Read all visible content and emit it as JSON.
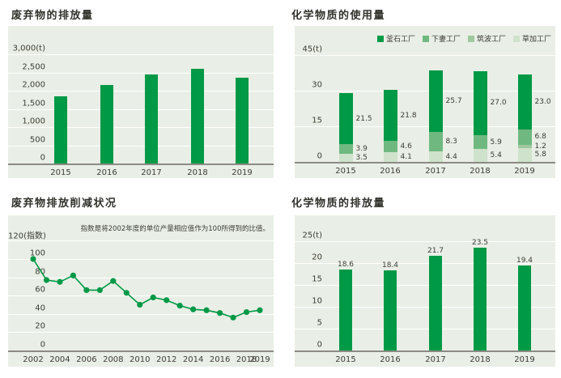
{
  "colors": {
    "page_background": "#ffffff",
    "panel_background": "#e9efe6",
    "gridline": "#ffffff",
    "axis_line": "#8b8b84",
    "text": "#3c3c36",
    "title_text": "#32322c",
    "brand_green": "#009946"
  },
  "chart_data": [
    {
      "id": "waste_emissions",
      "type": "bar",
      "title": "废弃物的排放量",
      "categories": [
        "2015",
        "2016",
        "2017",
        "2018",
        "2019"
      ],
      "values": [
        1850,
        2150,
        2450,
        2600,
        2350
      ],
      "bar_color": "#009946",
      "y_ticks": [
        0,
        500,
        1000,
        1500,
        2000,
        2500,
        3000
      ],
      "y_tick_labels": [
        "0",
        "500",
        "1,000",
        "1,500",
        "2,000",
        "2,500",
        "3,000(t)"
      ],
      "ylim": [
        0,
        3200
      ],
      "unit": "t",
      "grid": true,
      "value_labels": false
    },
    {
      "id": "chemical_usage",
      "type": "stacked-bar",
      "title": "化学物质的使用量",
      "categories": [
        "2015",
        "2016",
        "2017",
        "2018",
        "2019"
      ],
      "series": [
        {
          "name": "釜石工厂",
          "color": "#009946",
          "values": [
            21.5,
            21.8,
            25.7,
            27.0,
            23.0
          ]
        },
        {
          "name": "下妻工厂",
          "color": "#6fb981",
          "values": [
            3.9,
            4.6,
            8.3,
            5.9,
            6.8
          ]
        },
        {
          "name": "筑波工厂",
          "color": "#a0c89e",
          "values": [
            null,
            null,
            null,
            null,
            1.2
          ]
        },
        {
          "name": "草加工厂",
          "color": "#cfe2cb",
          "values": [
            3.5,
            4.1,
            4.4,
            5.4,
            5.8
          ]
        }
      ],
      "stack_order": "bottom-to-top is reverse of legend order",
      "y_ticks": [
        0,
        15,
        30,
        45
      ],
      "y_tick_labels": [
        "0",
        "15",
        "30",
        "45(t)"
      ],
      "ylim": [
        0,
        47
      ],
      "unit": "t",
      "grid": true,
      "legend_position": "top-right",
      "value_labels": true
    },
    {
      "id": "waste_reduction_index",
      "type": "line",
      "title": "废弃物排放削减状况",
      "annotation": "指数是将2002年度的单位产量相应值作为100所得到的比值。",
      "x": [
        2002,
        2003,
        2004,
        2005,
        2006,
        2007,
        2008,
        2009,
        2010,
        2011,
        2012,
        2013,
        2014,
        2015,
        2016,
        2017,
        2018,
        2019
      ],
      "values": [
        100,
        77,
        75,
        82,
        66,
        66,
        76,
        63,
        50,
        58,
        55,
        49,
        45,
        44,
        41,
        36,
        42,
        44
      ],
      "x_tick_labels": [
        "2002",
        "2004",
        "2006",
        "2008",
        "2010",
        "2012",
        "2014",
        "2016",
        "2018",
        "2019"
      ],
      "line_color": "#009946",
      "marker_color": "#009946",
      "y_ticks": [
        0,
        20,
        40,
        60,
        80,
        100,
        120
      ],
      "y_tick_labels": [
        "0",
        "20",
        "40",
        "60",
        "80",
        "100",
        "120(指数)"
      ],
      "ylim": [
        0,
        125
      ],
      "unit": "指数",
      "grid": true
    },
    {
      "id": "chemical_emissions",
      "type": "bar",
      "title": "化学物质的排放量",
      "categories": [
        "2015",
        "2016",
        "2017",
        "2018",
        "2019"
      ],
      "values": [
        18.6,
        18.4,
        21.7,
        23.5,
        19.4
      ],
      "value_label_texts": [
        "18.6",
        "18.4",
        "21.7",
        "23.5",
        "19.4"
      ],
      "bar_color": "#009946",
      "y_ticks": [
        0,
        5,
        10,
        15,
        20,
        25
      ],
      "y_tick_labels": [
        "0",
        "5",
        "10",
        "15",
        "20",
        "25(t)"
      ],
      "ylim": [
        0,
        26
      ],
      "unit": "t",
      "grid": true,
      "value_labels": true
    }
  ]
}
